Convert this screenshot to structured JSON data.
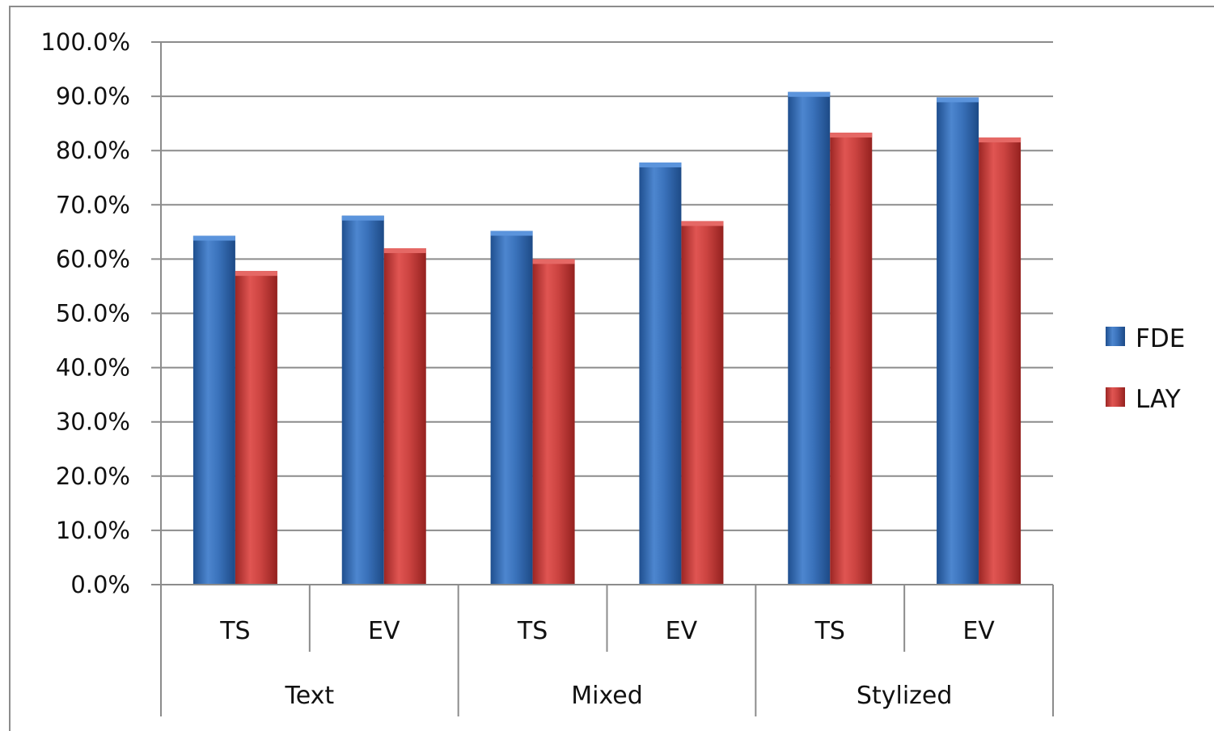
{
  "chart_data": {
    "type": "bar",
    "groups": [
      {
        "label": "Text",
        "categories": [
          "TS",
          "EV"
        ]
      },
      {
        "label": "Mixed",
        "categories": [
          "TS",
          "EV"
        ]
      },
      {
        "label": "Stylized",
        "categories": [
          "TS",
          "EV"
        ]
      }
    ],
    "series": [
      {
        "name": "FDE",
        "color": "#2f66ad",
        "values": [
          64.3,
          68.0,
          65.2,
          77.8,
          90.8,
          89.8
        ]
      },
      {
        "name": "LAY",
        "color": "#c23a38",
        "values": [
          57.8,
          62.0,
          60.0,
          67.0,
          83.3,
          82.4
        ]
      }
    ],
    "yticks": [
      "0.0%",
      "10.0%",
      "20.0%",
      "30.0%",
      "40.0%",
      "50.0%",
      "60.0%",
      "70.0%",
      "80.0%",
      "90.0%",
      "100.0%"
    ],
    "ylim": [
      0,
      100
    ],
    "grid": true,
    "legend_position": "right",
    "title": "",
    "xlabel": "",
    "ylabel": ""
  }
}
